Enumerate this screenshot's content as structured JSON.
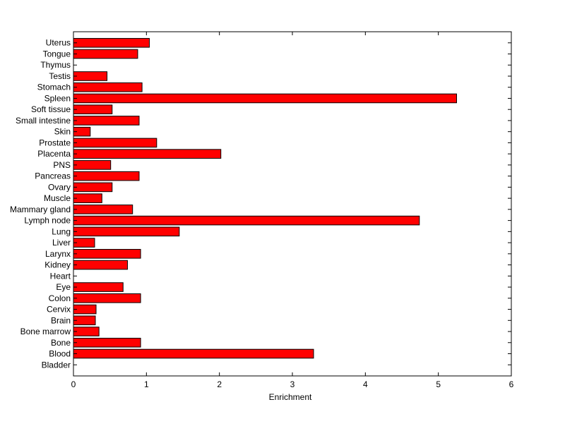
{
  "chart_data": {
    "type": "bar",
    "orientation": "horizontal",
    "xlabel": "Enrichment",
    "ylabel": "",
    "title": "",
    "xlim": [
      0,
      6
    ],
    "xticks": [
      "0",
      "1",
      "2",
      "3",
      "4",
      "5",
      "6"
    ],
    "grid": false,
    "bar_color": "#ff0000",
    "bar_edge_color": "#000000",
    "categories": [
      "Uterus",
      "Tongue",
      "Thymus",
      "Testis",
      "Stomach",
      "Spleen",
      "Soft tissue",
      "Small intestine",
      "Skin",
      "Prostate",
      "Placenta",
      "PNS",
      "Pancreas",
      "Ovary",
      "Muscle",
      "Mammary gland",
      "Lymph node",
      "Lung",
      "Liver",
      "Larynx",
      "Kidney",
      "Heart",
      "Eye",
      "Colon",
      "Cervix",
      "Brain",
      "Bone marrow",
      "Bone",
      "Blood",
      "Bladder"
    ],
    "values": [
      1.04,
      0.88,
      0,
      0.46,
      0.94,
      5.25,
      0.53,
      0.9,
      0.23,
      1.14,
      2.02,
      0.51,
      0.9,
      0.53,
      0.39,
      0.81,
      4.74,
      1.45,
      0.29,
      0.92,
      0.74,
      0,
      0.68,
      0.92,
      0.31,
      0.3,
      0.35,
      0.92,
      3.29,
      0
    ]
  }
}
